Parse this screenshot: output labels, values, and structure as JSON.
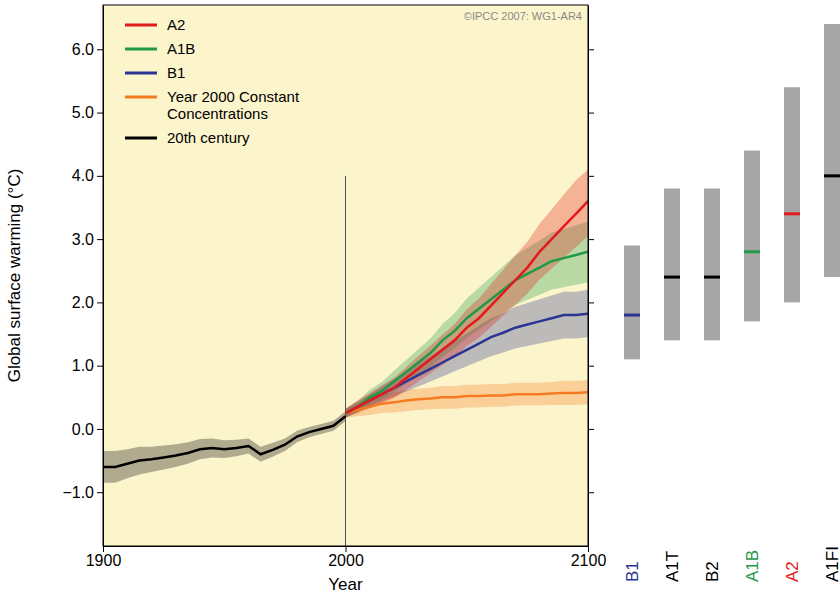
{
  "chart_data": [
    {
      "type": "line",
      "annotation": "©IPCC 2007: WG1-AR4",
      "x_label": "Year",
      "y_label": "Global surface warming (°C)",
      "legend": "upper left",
      "xlim": [
        1900,
        2100
      ],
      "xticks": [
        1900,
        2000,
        2100
      ],
      "ylim": [
        -1.85,
        6.7
      ],
      "yticks": [
        {
          "value": -1,
          "label": "−1.0"
        },
        {
          "value": 0,
          "label": "0.0"
        },
        {
          "value": 1,
          "label": "1.0"
        },
        {
          "value": 2,
          "label": "2.0"
        },
        {
          "value": 3,
          "label": "3.0"
        },
        {
          "value": 4,
          "label": "4.0"
        },
        {
          "value": 5,
          "label": "5.0"
        },
        {
          "value": 6,
          "label": "6.0"
        }
      ],
      "reference_line": {
        "x": 2000,
        "y": 4.0
      },
      "x": [
        1900,
        1905,
        1910,
        1915,
        1920,
        1925,
        1930,
        1935,
        1940,
        1945,
        1950,
        1955,
        1960,
        1965,
        1970,
        1975,
        1980,
        1985,
        1990,
        1995,
        2000,
        2005,
        2010,
        2015,
        2020,
        2025,
        2030,
        2035,
        2040,
        2045,
        2050,
        2055,
        2060,
        2065,
        2070,
        2075,
        2080,
        2085,
        2090,
        2095,
        2100
      ],
      "series": [
        {
          "name": "A2",
          "color": "#e31a1c",
          "values": [
            null,
            null,
            null,
            null,
            null,
            null,
            null,
            null,
            null,
            null,
            null,
            null,
            null,
            null,
            null,
            null,
            null,
            null,
            null,
            null,
            0.25,
            0.35,
            0.45,
            0.55,
            0.65,
            0.8,
            0.95,
            1.1,
            1.25,
            1.4,
            1.6,
            1.75,
            1.95,
            2.15,
            2.35,
            2.55,
            2.8,
            3.0,
            3.2,
            3.4,
            3.6
          ],
          "low": [
            null,
            null,
            null,
            null,
            null,
            null,
            null,
            null,
            null,
            null,
            null,
            null,
            null,
            null,
            null,
            null,
            null,
            null,
            null,
            null,
            0.18,
            0.25,
            0.33,
            0.41,
            0.49,
            0.62,
            0.75,
            0.88,
            1.01,
            1.14,
            1.31,
            1.44,
            1.61,
            1.79,
            1.96,
            2.14,
            2.36,
            2.53,
            2.7,
            2.87,
            3.05
          ],
          "high": [
            null,
            null,
            null,
            null,
            null,
            null,
            null,
            null,
            null,
            null,
            null,
            null,
            null,
            null,
            null,
            null,
            null,
            null,
            null,
            null,
            0.32,
            0.45,
            0.57,
            0.69,
            0.81,
            0.98,
            1.15,
            1.32,
            1.49,
            1.66,
            1.89,
            2.06,
            2.29,
            2.51,
            2.74,
            2.96,
            3.24,
            3.47,
            3.7,
            3.93,
            4.1
          ]
        },
        {
          "name": "A1B",
          "color": "#1f9a48",
          "values": [
            null,
            null,
            null,
            null,
            null,
            null,
            null,
            null,
            null,
            null,
            null,
            null,
            null,
            null,
            null,
            null,
            null,
            null,
            null,
            null,
            0.25,
            0.35,
            0.5,
            0.6,
            0.75,
            0.9,
            1.05,
            1.2,
            1.4,
            1.55,
            1.75,
            1.9,
            2.05,
            2.2,
            2.35,
            2.45,
            2.55,
            2.65,
            2.7,
            2.75,
            2.8
          ],
          "low": [
            null,
            null,
            null,
            null,
            null,
            null,
            null,
            null,
            null,
            null,
            null,
            null,
            null,
            null,
            null,
            null,
            null,
            null,
            null,
            null,
            0.18,
            0.26,
            0.38,
            0.46,
            0.58,
            0.71,
            0.84,
            0.97,
            1.14,
            1.27,
            1.44,
            1.57,
            1.7,
            1.83,
            1.96,
            2.04,
            2.12,
            2.2,
            2.24,
            2.28,
            2.32
          ],
          "high": [
            null,
            null,
            null,
            null,
            null,
            null,
            null,
            null,
            null,
            null,
            null,
            null,
            null,
            null,
            null,
            null,
            null,
            null,
            null,
            null,
            0.32,
            0.44,
            0.62,
            0.74,
            0.92,
            1.09,
            1.26,
            1.43,
            1.66,
            1.83,
            2.06,
            2.23,
            2.4,
            2.57,
            2.74,
            2.86,
            2.98,
            3.1,
            3.16,
            3.22,
            3.28
          ]
        },
        {
          "name": "B1",
          "color": "#2b3593",
          "values": [
            null,
            null,
            null,
            null,
            null,
            null,
            null,
            null,
            null,
            null,
            null,
            null,
            null,
            null,
            null,
            null,
            null,
            null,
            null,
            null,
            0.25,
            0.35,
            0.45,
            0.55,
            0.65,
            0.75,
            0.85,
            0.95,
            1.05,
            1.15,
            1.25,
            1.35,
            1.45,
            1.52,
            1.6,
            1.65,
            1.7,
            1.75,
            1.8,
            1.8,
            1.82
          ],
          "low": [
            null,
            null,
            null,
            null,
            null,
            null,
            null,
            null,
            null,
            null,
            null,
            null,
            null,
            null,
            null,
            null,
            null,
            null,
            null,
            null,
            0.18,
            0.27,
            0.35,
            0.43,
            0.51,
            0.59,
            0.67,
            0.75,
            0.83,
            0.91,
            0.99,
            1.07,
            1.15,
            1.21,
            1.27,
            1.31,
            1.35,
            1.39,
            1.43,
            1.43,
            1.45
          ],
          "high": [
            null,
            null,
            null,
            null,
            null,
            null,
            null,
            null,
            null,
            null,
            null,
            null,
            null,
            null,
            null,
            null,
            null,
            null,
            null,
            null,
            0.32,
            0.43,
            0.55,
            0.67,
            0.79,
            0.91,
            1.03,
            1.15,
            1.27,
            1.39,
            1.51,
            1.63,
            1.75,
            1.83,
            1.93,
            1.99,
            2.05,
            2.11,
            2.17,
            2.17,
            2.2
          ]
        },
        {
          "name": "Year 2000 Constant Concentrations",
          "color": "#f47b20",
          "values": [
            null,
            null,
            null,
            null,
            null,
            null,
            null,
            null,
            null,
            null,
            null,
            null,
            null,
            null,
            null,
            null,
            null,
            null,
            null,
            null,
            0.25,
            0.3,
            0.35,
            0.4,
            0.42,
            0.45,
            0.47,
            0.48,
            0.5,
            0.5,
            0.52,
            0.52,
            0.53,
            0.53,
            0.55,
            0.55,
            0.55,
            0.56,
            0.57,
            0.57,
            0.58
          ],
          "low": [
            null,
            null,
            null,
            null,
            null,
            null,
            null,
            null,
            null,
            null,
            null,
            null,
            null,
            null,
            null,
            null,
            null,
            null,
            null,
            null,
            0.18,
            0.2,
            0.22,
            0.25,
            0.26,
            0.28,
            0.3,
            0.31,
            0.32,
            0.32,
            0.34,
            0.34,
            0.35,
            0.35,
            0.37,
            0.37,
            0.37,
            0.38,
            0.38,
            0.38,
            0.39
          ],
          "high": [
            null,
            null,
            null,
            null,
            null,
            null,
            null,
            null,
            null,
            null,
            null,
            null,
            null,
            null,
            null,
            null,
            null,
            null,
            null,
            null,
            0.32,
            0.4,
            0.48,
            0.55,
            0.58,
            0.62,
            0.64,
            0.65,
            0.68,
            0.68,
            0.7,
            0.7,
            0.71,
            0.71,
            0.73,
            0.73,
            0.73,
            0.74,
            0.76,
            0.76,
            0.77
          ]
        },
        {
          "name": "20th century",
          "color": "#000000",
          "values": [
            -0.6,
            -0.6,
            -0.55,
            -0.5,
            -0.48,
            -0.45,
            -0.42,
            -0.38,
            -0.32,
            -0.3,
            -0.32,
            -0.3,
            -0.27,
            -0.4,
            -0.33,
            -0.25,
            -0.12,
            -0.05,
            0.0,
            0.05,
            0.2,
            null,
            null,
            null,
            null,
            null,
            null,
            null,
            null,
            null,
            null,
            null,
            null,
            null,
            null,
            null,
            null,
            null,
            null,
            null,
            null
          ],
          "low": [
            -0.85,
            -0.85,
            -0.78,
            -0.72,
            -0.68,
            -0.64,
            -0.6,
            -0.55,
            -0.48,
            -0.45,
            -0.46,
            -0.43,
            -0.39,
            -0.52,
            -0.44,
            -0.35,
            -0.21,
            -0.13,
            -0.08,
            -0.03,
            0.12,
            null,
            null,
            null,
            null,
            null,
            null,
            null,
            null,
            null,
            null,
            null,
            null,
            null,
            null,
            null,
            null,
            null,
            null,
            null,
            null
          ],
          "high": [
            -0.35,
            -0.35,
            -0.32,
            -0.28,
            -0.28,
            -0.26,
            -0.24,
            -0.21,
            -0.16,
            -0.15,
            -0.18,
            -0.17,
            -0.15,
            -0.28,
            -0.22,
            -0.15,
            -0.03,
            0.03,
            0.08,
            0.13,
            0.28,
            null,
            null,
            null,
            null,
            null,
            null,
            null,
            null,
            null,
            null,
            null,
            null,
            null,
            null,
            null,
            null,
            null,
            null,
            null,
            null
          ]
        }
      ]
    },
    {
      "type": "range",
      "categories": [
        "B1",
        "A1T",
        "B2",
        "A1B",
        "A2",
        "A1FI"
      ],
      "values": [
        1.8,
        2.4,
        2.4,
        2.8,
        3.4,
        4.0
      ],
      "low": [
        1.1,
        1.4,
        1.4,
        1.7,
        2.0,
        2.4
      ],
      "high": [
        2.9,
        3.8,
        3.8,
        4.4,
        5.4,
        6.4
      ],
      "colors": [
        "#2b3593",
        "#000000",
        "#000000",
        "#1f9a48",
        "#e31a1c",
        "#000000"
      ],
      "ylim": [
        -1.85,
        6.7
      ],
      "tick_labels": "x"
    }
  ]
}
